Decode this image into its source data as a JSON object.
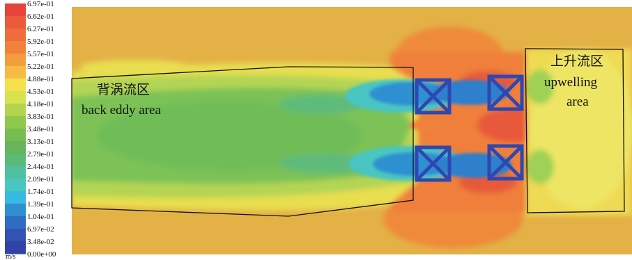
{
  "colorbar": {
    "unit": "m/s",
    "ticks": [
      "6.97e-01",
      "6.62e-01",
      "6.27e-01",
      "5.92e-01",
      "5.57e-01",
      "5.22e-01",
      "4.88e-01",
      "4.53e-01",
      "4.18e-01",
      "3.83e-01",
      "3.48e-01",
      "3.13e-01",
      "2.79e-01",
      "2.44e-01",
      "2.09e-01",
      "1.74e-01",
      "1.39e-01",
      "1.04e-01",
      "6.97e-02",
      "3.48e-02",
      "0.00e+00"
    ],
    "colors": [
      "#e8433c",
      "#ec5a3c",
      "#ef6d3b",
      "#f0823b",
      "#f39d3f",
      "#f6bb45",
      "#f5e14c",
      "#d9e250",
      "#b3d44f",
      "#8fc84d",
      "#76bd52",
      "#67b55b",
      "#5cba79",
      "#4fc0a0",
      "#49c5c2",
      "#38b9e0",
      "#2f8fd1",
      "#2f6cc2",
      "#3053b4",
      "#2f44a6"
    ]
  },
  "regions": {
    "back_eddy_cn": "背涡流区",
    "back_eddy_en": "back eddy area",
    "upwelling_cn": "上升流区",
    "upwelling_en_1": "upwelling",
    "upwelling_en_2": "area"
  }
}
